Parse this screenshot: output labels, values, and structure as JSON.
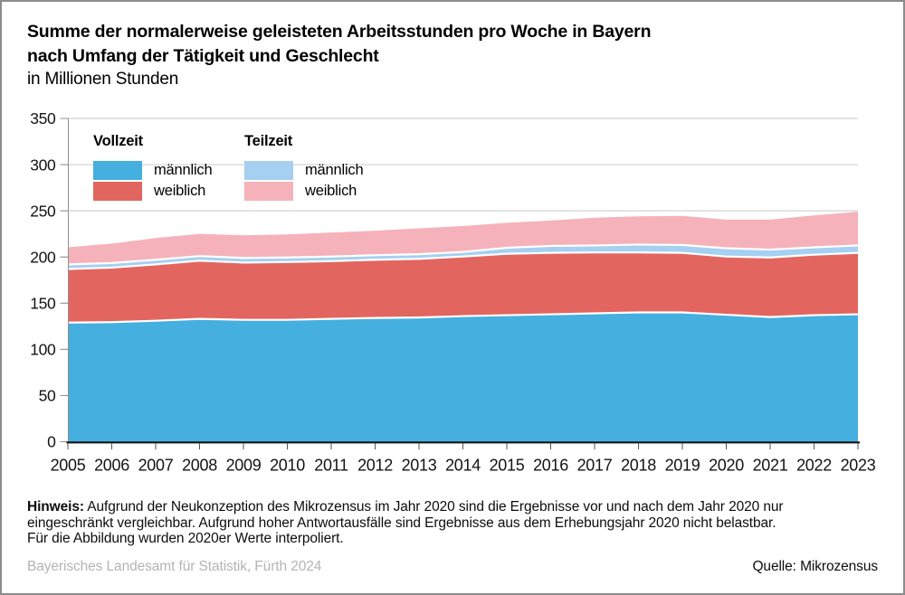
{
  "title": {
    "line1": "Summe der normalerweise geleisteten Arbeitsstunden pro Woche in Bayern",
    "line2": "nach Umfang der Tätigkeit und Geschlecht",
    "subtitle": "in Millionen Stunden"
  },
  "legend": {
    "groups": [
      {
        "title": "Vollzeit",
        "items": [
          {
            "label": "männlich"
          },
          {
            "label": "weiblich"
          }
        ]
      },
      {
        "title": "Teilzeit",
        "items": [
          {
            "label": "männlich"
          },
          {
            "label": "weiblich"
          }
        ]
      }
    ]
  },
  "chart_data": {
    "type": "area",
    "stacked": true,
    "title": "Summe der normalerweise geleisteten Arbeitsstunden pro Woche in Bayern nach Umfang der Tätigkeit und Geschlecht",
    "unit": "in Millionen Stunden",
    "x": [
      2005,
      2006,
      2007,
      2008,
      2009,
      2010,
      2011,
      2012,
      2013,
      2014,
      2015,
      2016,
      2017,
      2018,
      2019,
      2020,
      2021,
      2022,
      2023
    ],
    "series": [
      {
        "id": "vollzeit-maennlich",
        "name": "Vollzeit männlich",
        "color": "#45afdf",
        "values": [
          129,
          129.5,
          131,
          133,
          132,
          132,
          133,
          134,
          134.5,
          136,
          137,
          138,
          139,
          140,
          140,
          137.5,
          135,
          137,
          138
        ]
      },
      {
        "id": "vollzeit-weiblich",
        "name": "Vollzeit weiblich",
        "color": "#e2665f",
        "values": [
          58,
          59,
          61,
          63,
          62,
          62.5,
          62.5,
          63,
          63.5,
          64.5,
          66.5,
          66.5,
          66,
          65,
          64.5,
          63,
          64.5,
          65.5,
          66.5
        ]
      },
      {
        "id": "teilzeit-maennlich",
        "name": "Teilzeit männlich",
        "color": "#a5d0f1",
        "values": [
          5,
          5,
          5,
          5,
          5,
          5,
          5,
          5,
          5,
          5,
          6.5,
          7.5,
          7.5,
          8.5,
          8.5,
          9,
          8.5,
          8,
          8
        ]
      },
      {
        "id": "teilzeit-weiblich",
        "name": "Teilzeit weiblich",
        "color": "#f6b2ba",
        "values": [
          18.5,
          21,
          23.5,
          24,
          24.5,
          25,
          26,
          26.5,
          28,
          28,
          27,
          27.5,
          30,
          30.5,
          31.5,
          31,
          32.5,
          34.5,
          36.5
        ]
      }
    ],
    "ylim": [
      0,
      350
    ],
    "ytick_step": 50,
    "yticks": [
      0,
      50,
      100,
      150,
      200,
      250,
      300,
      350
    ],
    "grid": true,
    "legend_position": "top-left-inside",
    "separator_color": "#ffffff",
    "grid_color": "#c9c9c9",
    "axis_color": "#8f8f8f",
    "baseline_color": "#141414"
  },
  "footer": {
    "note_label": "Hinweis:",
    "note_line1": "Aufgrund der Neukonzeption des Mikrozensus im Jahr 2020 sind die Ergebnisse vor und nach dem Jahr 2020 nur",
    "note_line2": "eingeschränkt vergleichbar. Aufgrund hoher Antwortausfälle sind Ergebnisse aus dem Erhebungsjahr 2020 nicht belastbar.",
    "note_line3": "Für die Abbildung wurden 2020er Werte interpoliert.",
    "publisher": "Bayerisches Landesamt für Statistik, Fürth 2024",
    "source": "Quelle: Mikrozensus"
  }
}
